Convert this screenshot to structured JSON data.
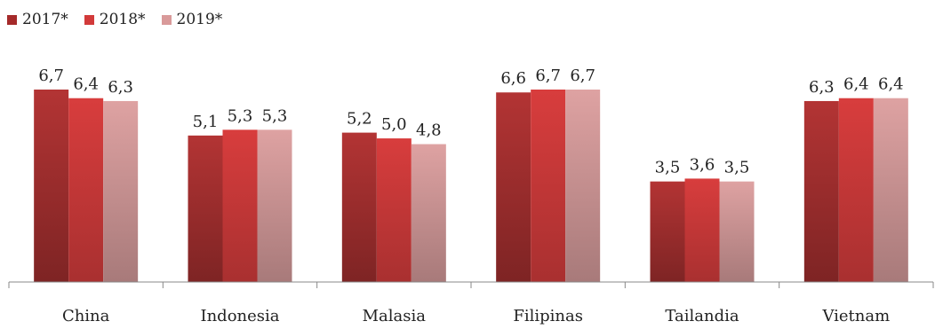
{
  "chart_data": {
    "type": "bar",
    "categories": [
      "China",
      "Indonesia",
      "Malasia",
      "Filipinas",
      "Tailandia",
      "Vietnam"
    ],
    "series": [
      {
        "name": "2017*",
        "color": "#a52a2a",
        "values": [
          6.7,
          5.1,
          5.2,
          6.6,
          3.5,
          6.3
        ],
        "labels": [
          "6,7",
          "5,1",
          "5,2",
          "6,6",
          "3,5",
          "6,3"
        ]
      },
      {
        "name": "2018*",
        "color": "#d23a3a",
        "values": [
          6.4,
          5.3,
          5.0,
          6.7,
          3.6,
          6.4
        ],
        "labels": [
          "6,4",
          "5,3",
          "5,0",
          "6,7",
          "3,6",
          "6,4"
        ]
      },
      {
        "name": "2019*",
        "color": "#d99a9a",
        "values": [
          6.3,
          5.3,
          4.8,
          6.7,
          3.5,
          6.4
        ],
        "labels": [
          "6,3",
          "5,3",
          "4,8",
          "6,7",
          "3,5",
          "6,4"
        ]
      }
    ],
    "title": "",
    "xlabel": "",
    "ylabel": "",
    "ylim": [
      0,
      6.7
    ],
    "grid": false,
    "legend": "top-left"
  }
}
